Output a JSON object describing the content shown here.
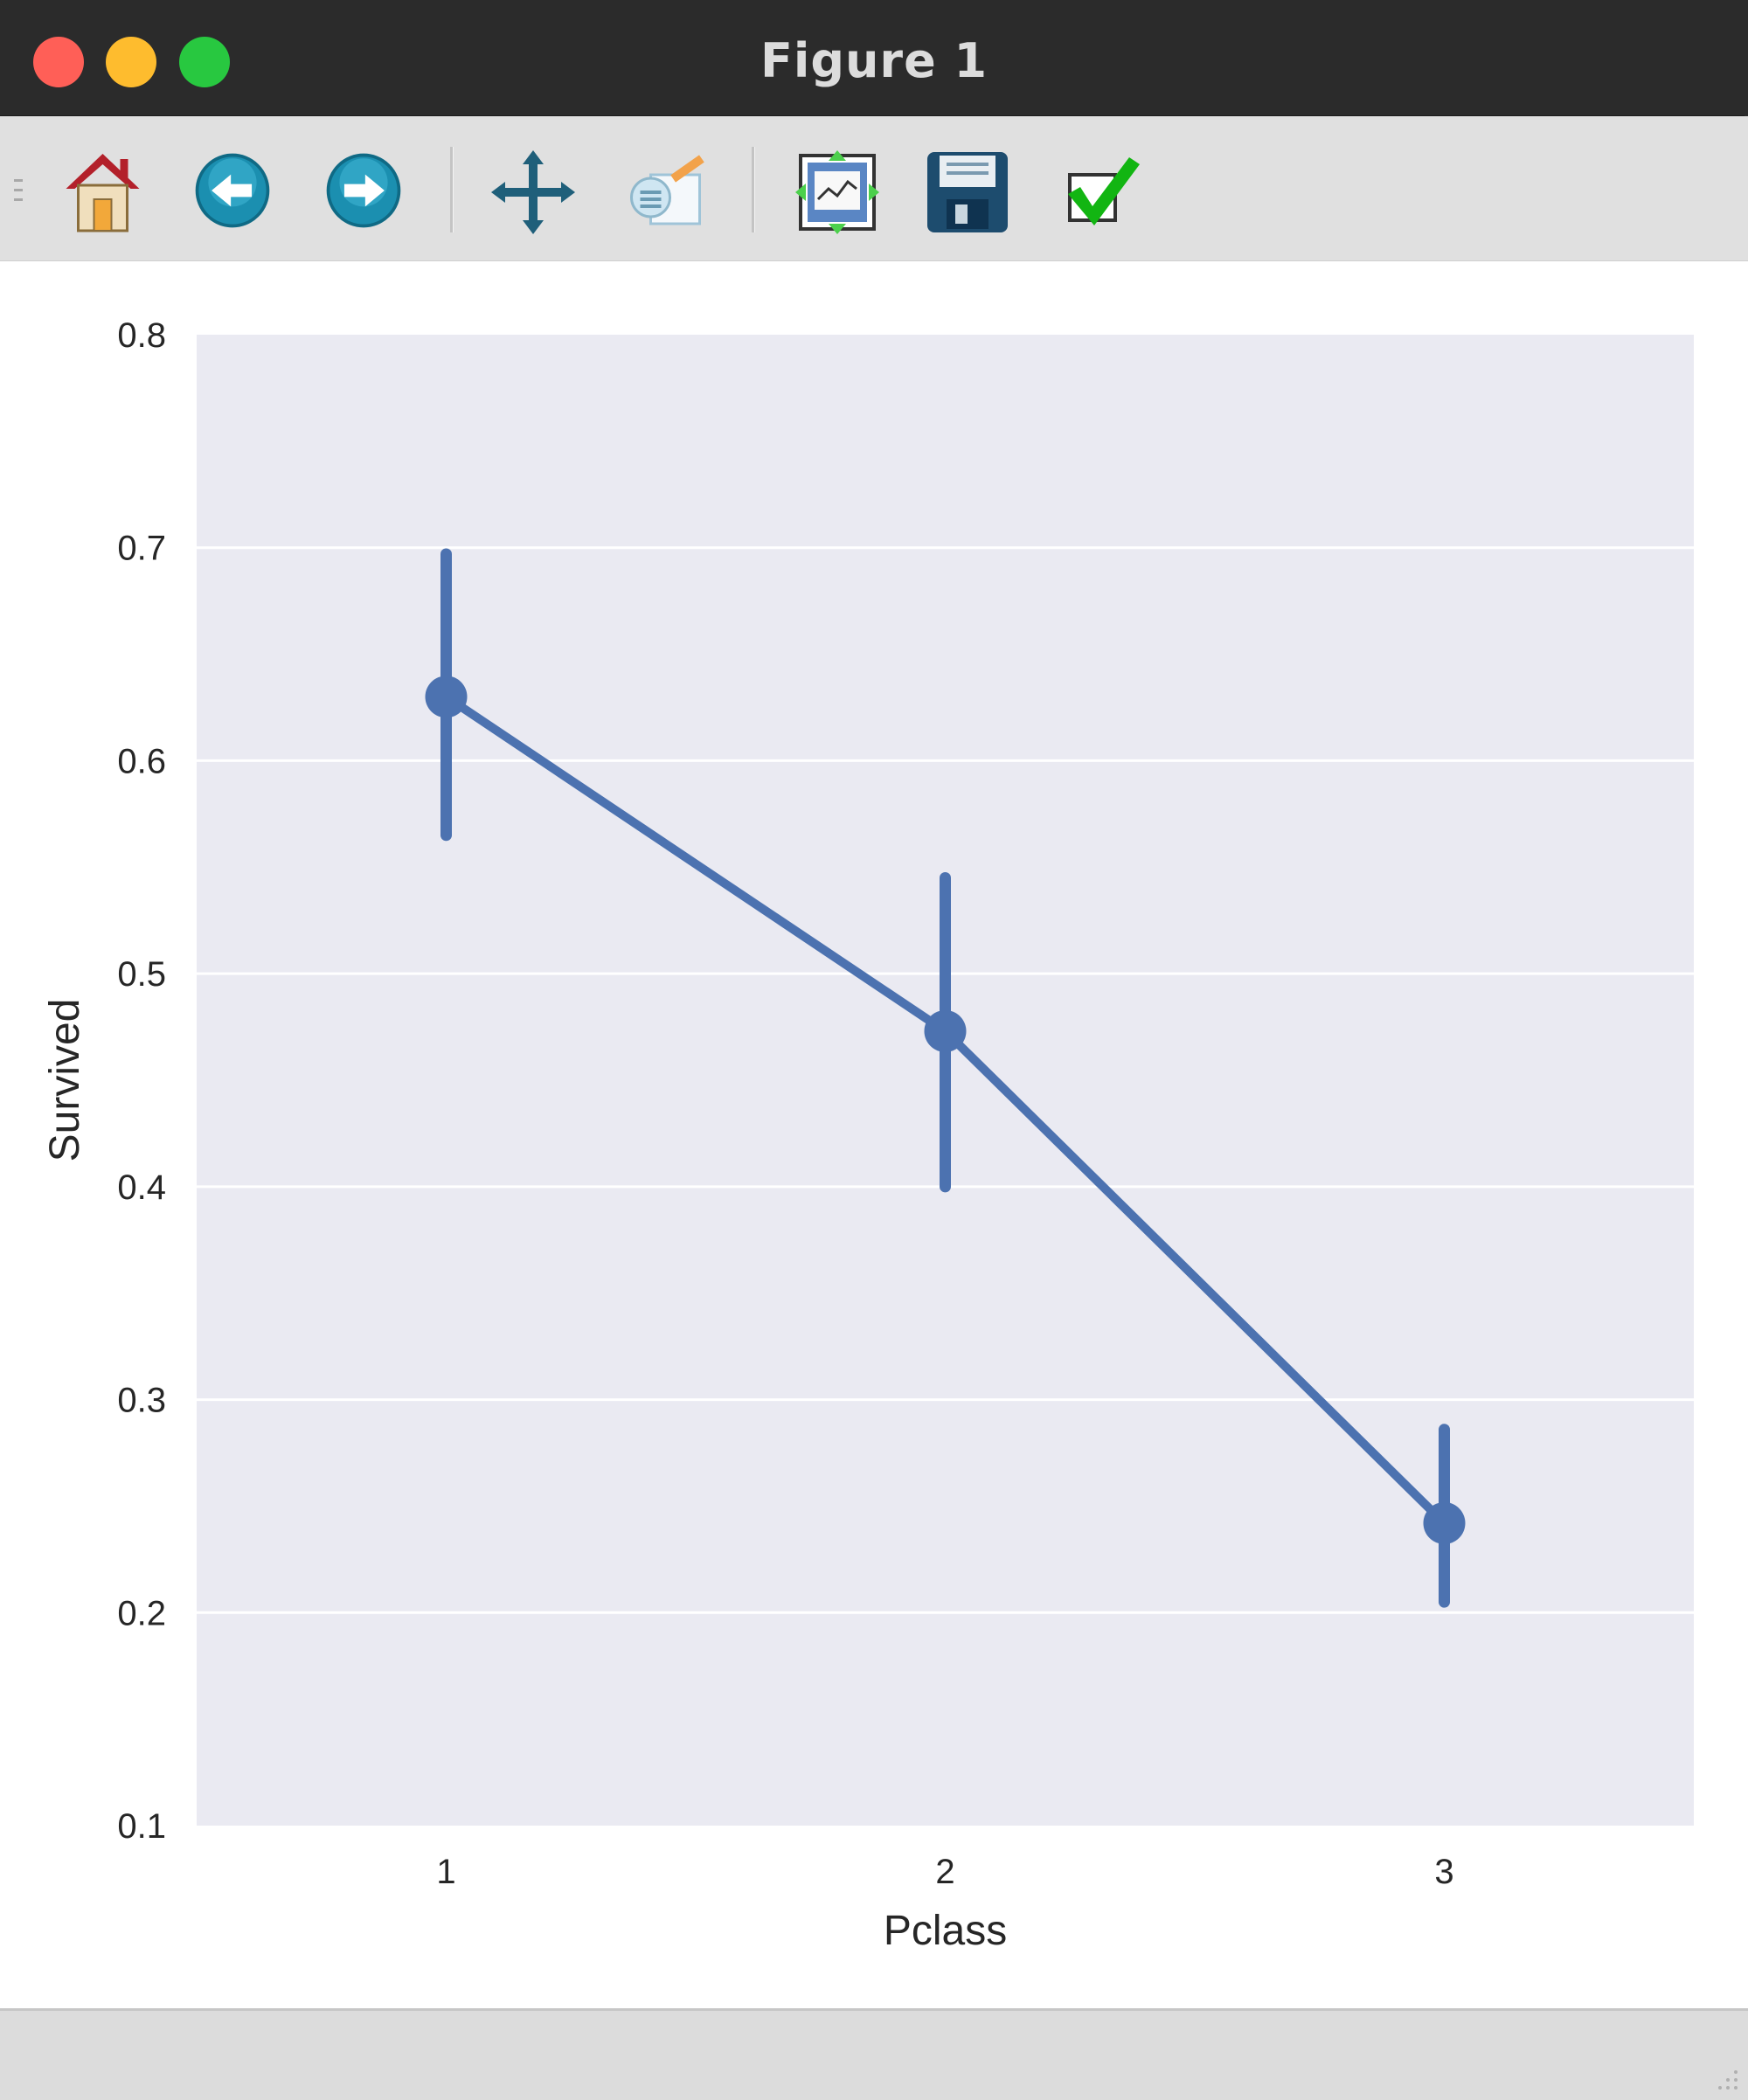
{
  "window": {
    "title": "Figure 1",
    "colors": {
      "close": "#ff5f57",
      "minimize": "#febc2e",
      "maximize": "#28c840"
    }
  },
  "toolbar": {
    "buttons": [
      {
        "name": "home",
        "icon": "home-icon"
      },
      {
        "name": "back",
        "icon": "back-arrow-icon"
      },
      {
        "name": "forward",
        "icon": "forward-arrow-icon"
      },
      {
        "name": "pan",
        "icon": "move-arrows-icon"
      },
      {
        "name": "zoom",
        "icon": "zoom-to-rect-icon"
      },
      {
        "name": "configure-subplots",
        "icon": "subplots-icon"
      },
      {
        "name": "save",
        "icon": "floppy-disk-icon"
      },
      {
        "name": "edit-parameters",
        "icon": "checkmark-icon"
      }
    ]
  },
  "chart_data": {
    "type": "line",
    "categories": [
      "1",
      "2",
      "3"
    ],
    "series": [
      {
        "values": [
          0.63,
          0.473,
          0.242
        ],
        "ci_low": [
          0.565,
          0.4,
          0.205
        ],
        "ci_high": [
          0.697,
          0.545,
          0.286
        ],
        "color": "#4c72b0"
      }
    ],
    "xlabel": "Pclass",
    "ylabel": "Survived",
    "ylim": [
      0.1,
      0.8
    ],
    "yticks": [
      "0.1",
      "0.2",
      "0.3",
      "0.4",
      "0.5",
      "0.6",
      "0.7",
      "0.8"
    ],
    "grid": true,
    "background": "#eaeaf2"
  }
}
